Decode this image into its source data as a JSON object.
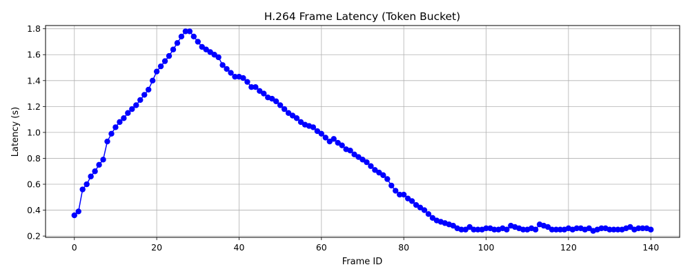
{
  "chart_data": {
    "type": "line",
    "title": "H.264 Frame Latency (Token Bucket)",
    "xlabel": "Frame ID",
    "ylabel": "Latency (s)",
    "xlim": [
      -7,
      147
    ],
    "ylim": [
      0.19,
      1.825
    ],
    "xticks": [
      0,
      20,
      40,
      60,
      80,
      100,
      120,
      140
    ],
    "yticks": [
      0.2,
      0.4,
      0.6,
      0.8,
      1.0,
      1.2,
      1.4,
      1.6,
      1.8
    ],
    "ytick_labels": [
      "0.2",
      "0.4",
      "0.6",
      "0.8",
      "1.0",
      "1.2",
      "1.4",
      "1.6",
      "1.8"
    ],
    "grid": true,
    "series": [
      {
        "color": "#0000ff",
        "marker": "circle",
        "x": [
          0,
          1,
          2,
          3,
          4,
          5,
          6,
          7,
          8,
          9,
          10,
          11,
          12,
          13,
          14,
          15,
          16,
          17,
          18,
          19,
          20,
          21,
          22,
          23,
          24,
          25,
          26,
          27,
          28,
          29,
          30,
          31,
          32,
          33,
          34,
          35,
          36,
          37,
          38,
          39,
          40,
          41,
          42,
          43,
          44,
          45,
          46,
          47,
          48,
          49,
          50,
          51,
          52,
          53,
          54,
          55,
          56,
          57,
          58,
          59,
          60,
          61,
          62,
          63,
          64,
          65,
          66,
          67,
          68,
          69,
          70,
          71,
          72,
          73,
          74,
          75,
          76,
          77,
          78,
          79,
          80,
          81,
          82,
          83,
          84,
          85,
          86,
          87,
          88,
          89,
          90,
          91,
          92,
          93,
          94,
          95,
          96,
          97,
          98,
          99,
          100,
          101,
          102,
          103,
          104,
          105,
          106,
          107,
          108,
          109,
          110,
          111,
          112,
          113,
          114,
          115,
          116,
          117,
          118,
          119,
          120,
          121,
          122,
          123,
          124,
          125,
          126,
          127,
          128,
          129,
          130,
          131,
          132,
          133,
          134,
          135,
          136,
          137,
          138,
          139,
          140
        ],
        "y": [
          0.36,
          0.39,
          0.56,
          0.6,
          0.66,
          0.7,
          0.75,
          0.79,
          0.93,
          0.99,
          1.04,
          1.08,
          1.11,
          1.15,
          1.18,
          1.21,
          1.25,
          1.29,
          1.33,
          1.4,
          1.47,
          1.51,
          1.55,
          1.59,
          1.64,
          1.69,
          1.74,
          1.78,
          1.78,
          1.74,
          1.7,
          1.66,
          1.64,
          1.62,
          1.6,
          1.58,
          1.52,
          1.49,
          1.46,
          1.43,
          1.43,
          1.42,
          1.39,
          1.35,
          1.35,
          1.32,
          1.3,
          1.27,
          1.26,
          1.24,
          1.21,
          1.18,
          1.15,
          1.13,
          1.11,
          1.08,
          1.06,
          1.05,
          1.04,
          1.01,
          0.99,
          0.96,
          0.93,
          0.95,
          0.92,
          0.9,
          0.87,
          0.86,
          0.83,
          0.81,
          0.79,
          0.77,
          0.74,
          0.71,
          0.69,
          0.67,
          0.64,
          0.59,
          0.55,
          0.52,
          0.52,
          0.49,
          0.47,
          0.44,
          0.42,
          0.4,
          0.37,
          0.34,
          0.32,
          0.31,
          0.3,
          0.29,
          0.28,
          0.26,
          0.25,
          0.25,
          0.27,
          0.25,
          0.25,
          0.25,
          0.26,
          0.26,
          0.25,
          0.25,
          0.26,
          0.25,
          0.28,
          0.27,
          0.26,
          0.25,
          0.25,
          0.26,
          0.25,
          0.29,
          0.28,
          0.27,
          0.25,
          0.25,
          0.25,
          0.25,
          0.26,
          0.25,
          0.26,
          0.26,
          0.25,
          0.26,
          0.24,
          0.25,
          0.26,
          0.26,
          0.25,
          0.25,
          0.25,
          0.25,
          0.26,
          0.27,
          0.25,
          0.26,
          0.26,
          0.26,
          0.25
        ]
      }
    ]
  }
}
